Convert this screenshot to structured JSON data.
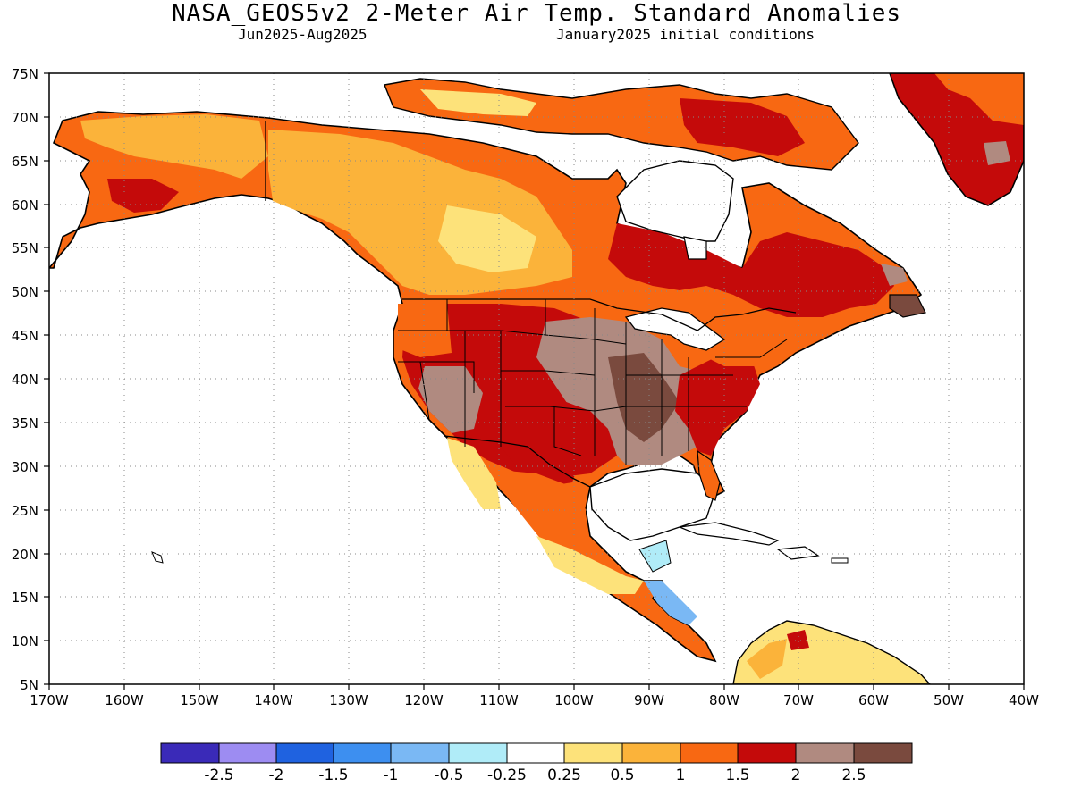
{
  "title": "NASA_GEOS5v2 2-Meter Air Temp. Standard Anomalies",
  "subtitle_left": "Jun2025-Aug2025",
  "subtitle_right": "January2025 initial conditions",
  "lat_labels": [
    "75N",
    "70N",
    "65N",
    "60N",
    "55N",
    "50N",
    "45N",
    "40N",
    "35N",
    "30N",
    "25N",
    "20N",
    "15N",
    "10N",
    "5N"
  ],
  "lon_labels": [
    "170W",
    "160W",
    "150W",
    "140W",
    "130W",
    "120W",
    "110W",
    "100W",
    "90W",
    "80W",
    "70W",
    "60W",
    "50W",
    "40W"
  ],
  "colorbar": {
    "colors": [
      "#3a2ab8",
      "#9d8cf2",
      "#1f62e0",
      "#3d8ff0",
      "#7ab8f4",
      "#b0ecf8",
      "#ffffff",
      "#fde27a",
      "#fbb33a",
      "#f86812",
      "#c40a0a",
      "#b08a80",
      "#7a4a3e"
    ],
    "labels": [
      "-2.5",
      "-2",
      "-1.5",
      "-1",
      "-0.5",
      "-0.25",
      "0.25",
      "0.5",
      "1",
      "1.5",
      "2",
      "2.5"
    ]
  },
  "map_data": {
    "type": "map",
    "variable": "2-Meter Air Temp. Standard Anomalies",
    "lon_range": [
      -170,
      -40
    ],
    "lat_range": [
      5,
      75
    ],
    "grid": "dotted",
    "regions": [
      {
        "name": "Alaska",
        "anomaly_class": "0.5 to 1.5"
      },
      {
        "name": "Western Canada",
        "anomaly_class": "0.25 to 1"
      },
      {
        "name": "Northern Canada / Arctic islands",
        "anomaly_class": "0.5 to 2"
      },
      {
        "name": "Hudson Bay region",
        "anomaly_class": "1 to 2"
      },
      {
        "name": "Greenland",
        "anomaly_class": "1.5 to 2.5"
      },
      {
        "name": "Western United States",
        "anomaly_class": "1 to 2.5"
      },
      {
        "name": "Central United States",
        "anomaly_class": "2 to above 2.5"
      },
      {
        "name": "Southeastern United States",
        "anomaly_class": "1.5 to 2.5"
      },
      {
        "name": "Northern Mexico",
        "anomaly_class": "0.5 to 2"
      },
      {
        "name": "Southern Mexico / Central America",
        "anomaly_class": "-0.5 to 1"
      },
      {
        "name": "Northern South America",
        "anomaly_class": "0.25 to 1.5"
      }
    ]
  }
}
